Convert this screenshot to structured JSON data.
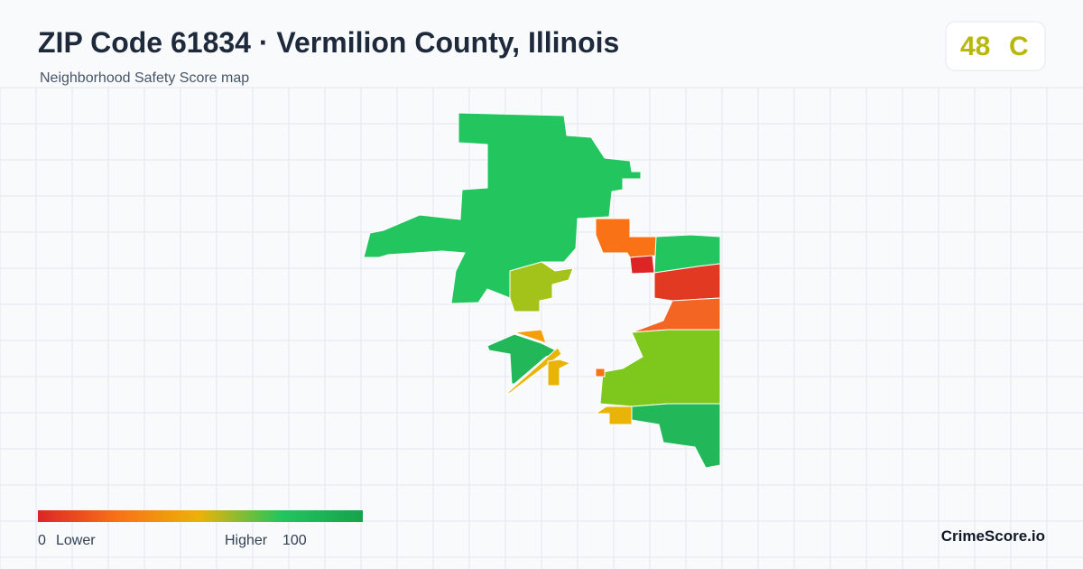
{
  "header": {
    "title": "ZIP Code 61834 · Vermilion County, Illinois",
    "subtitle": "Neighborhood Safety Score map"
  },
  "score": {
    "value": "48",
    "grade": "C"
  },
  "legend": {
    "min": "0",
    "min_label": "Lower",
    "max_label": "Higher",
    "max": "100"
  },
  "brand": "CrimeScore.io"
}
